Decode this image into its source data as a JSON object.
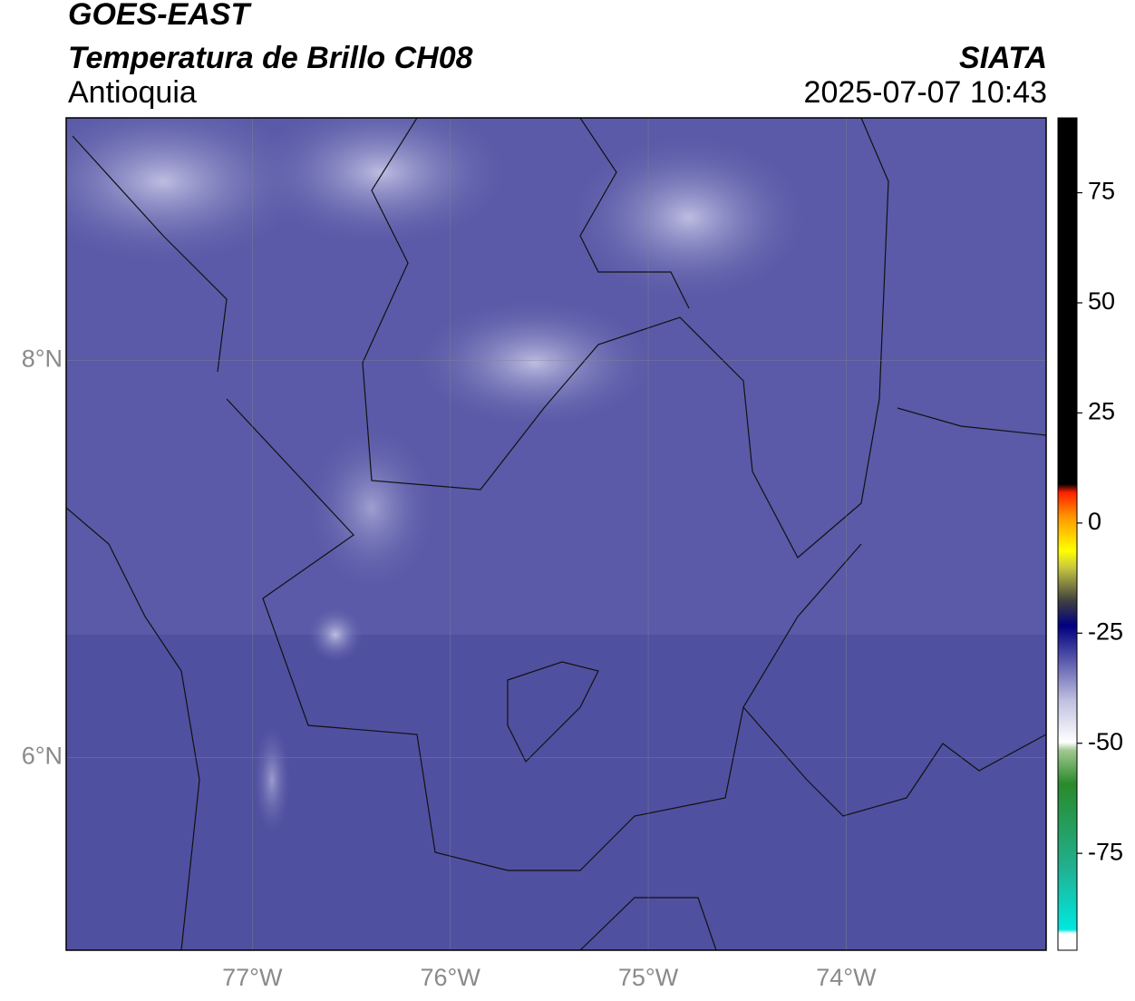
{
  "header": {
    "title": "GOES-EAST",
    "subtitle": "Temperatura de Brillo CH08",
    "region": "Antioquia",
    "source": "SIATA",
    "datetime": "2025-07-07 10:43"
  },
  "map": {
    "xlim": [
      -77.94,
      -72.99
    ],
    "ylim": [
      5.03,
      9.22
    ],
    "xticks": [
      {
        "value": -77,
        "label": "77°W"
      },
      {
        "value": -76,
        "label": "76°W"
      },
      {
        "value": -75,
        "label": "75°W"
      },
      {
        "value": -74,
        "label": "74°W"
      }
    ],
    "yticks": [
      {
        "value": 8,
        "label": "8°N"
      },
      {
        "value": 6,
        "label": "6°N"
      }
    ],
    "grid": true
  },
  "colorbar": {
    "lim": [
      -97,
      92
    ],
    "ticks": [
      75,
      50,
      25,
      0,
      -25,
      -50,
      -75
    ]
  }
}
